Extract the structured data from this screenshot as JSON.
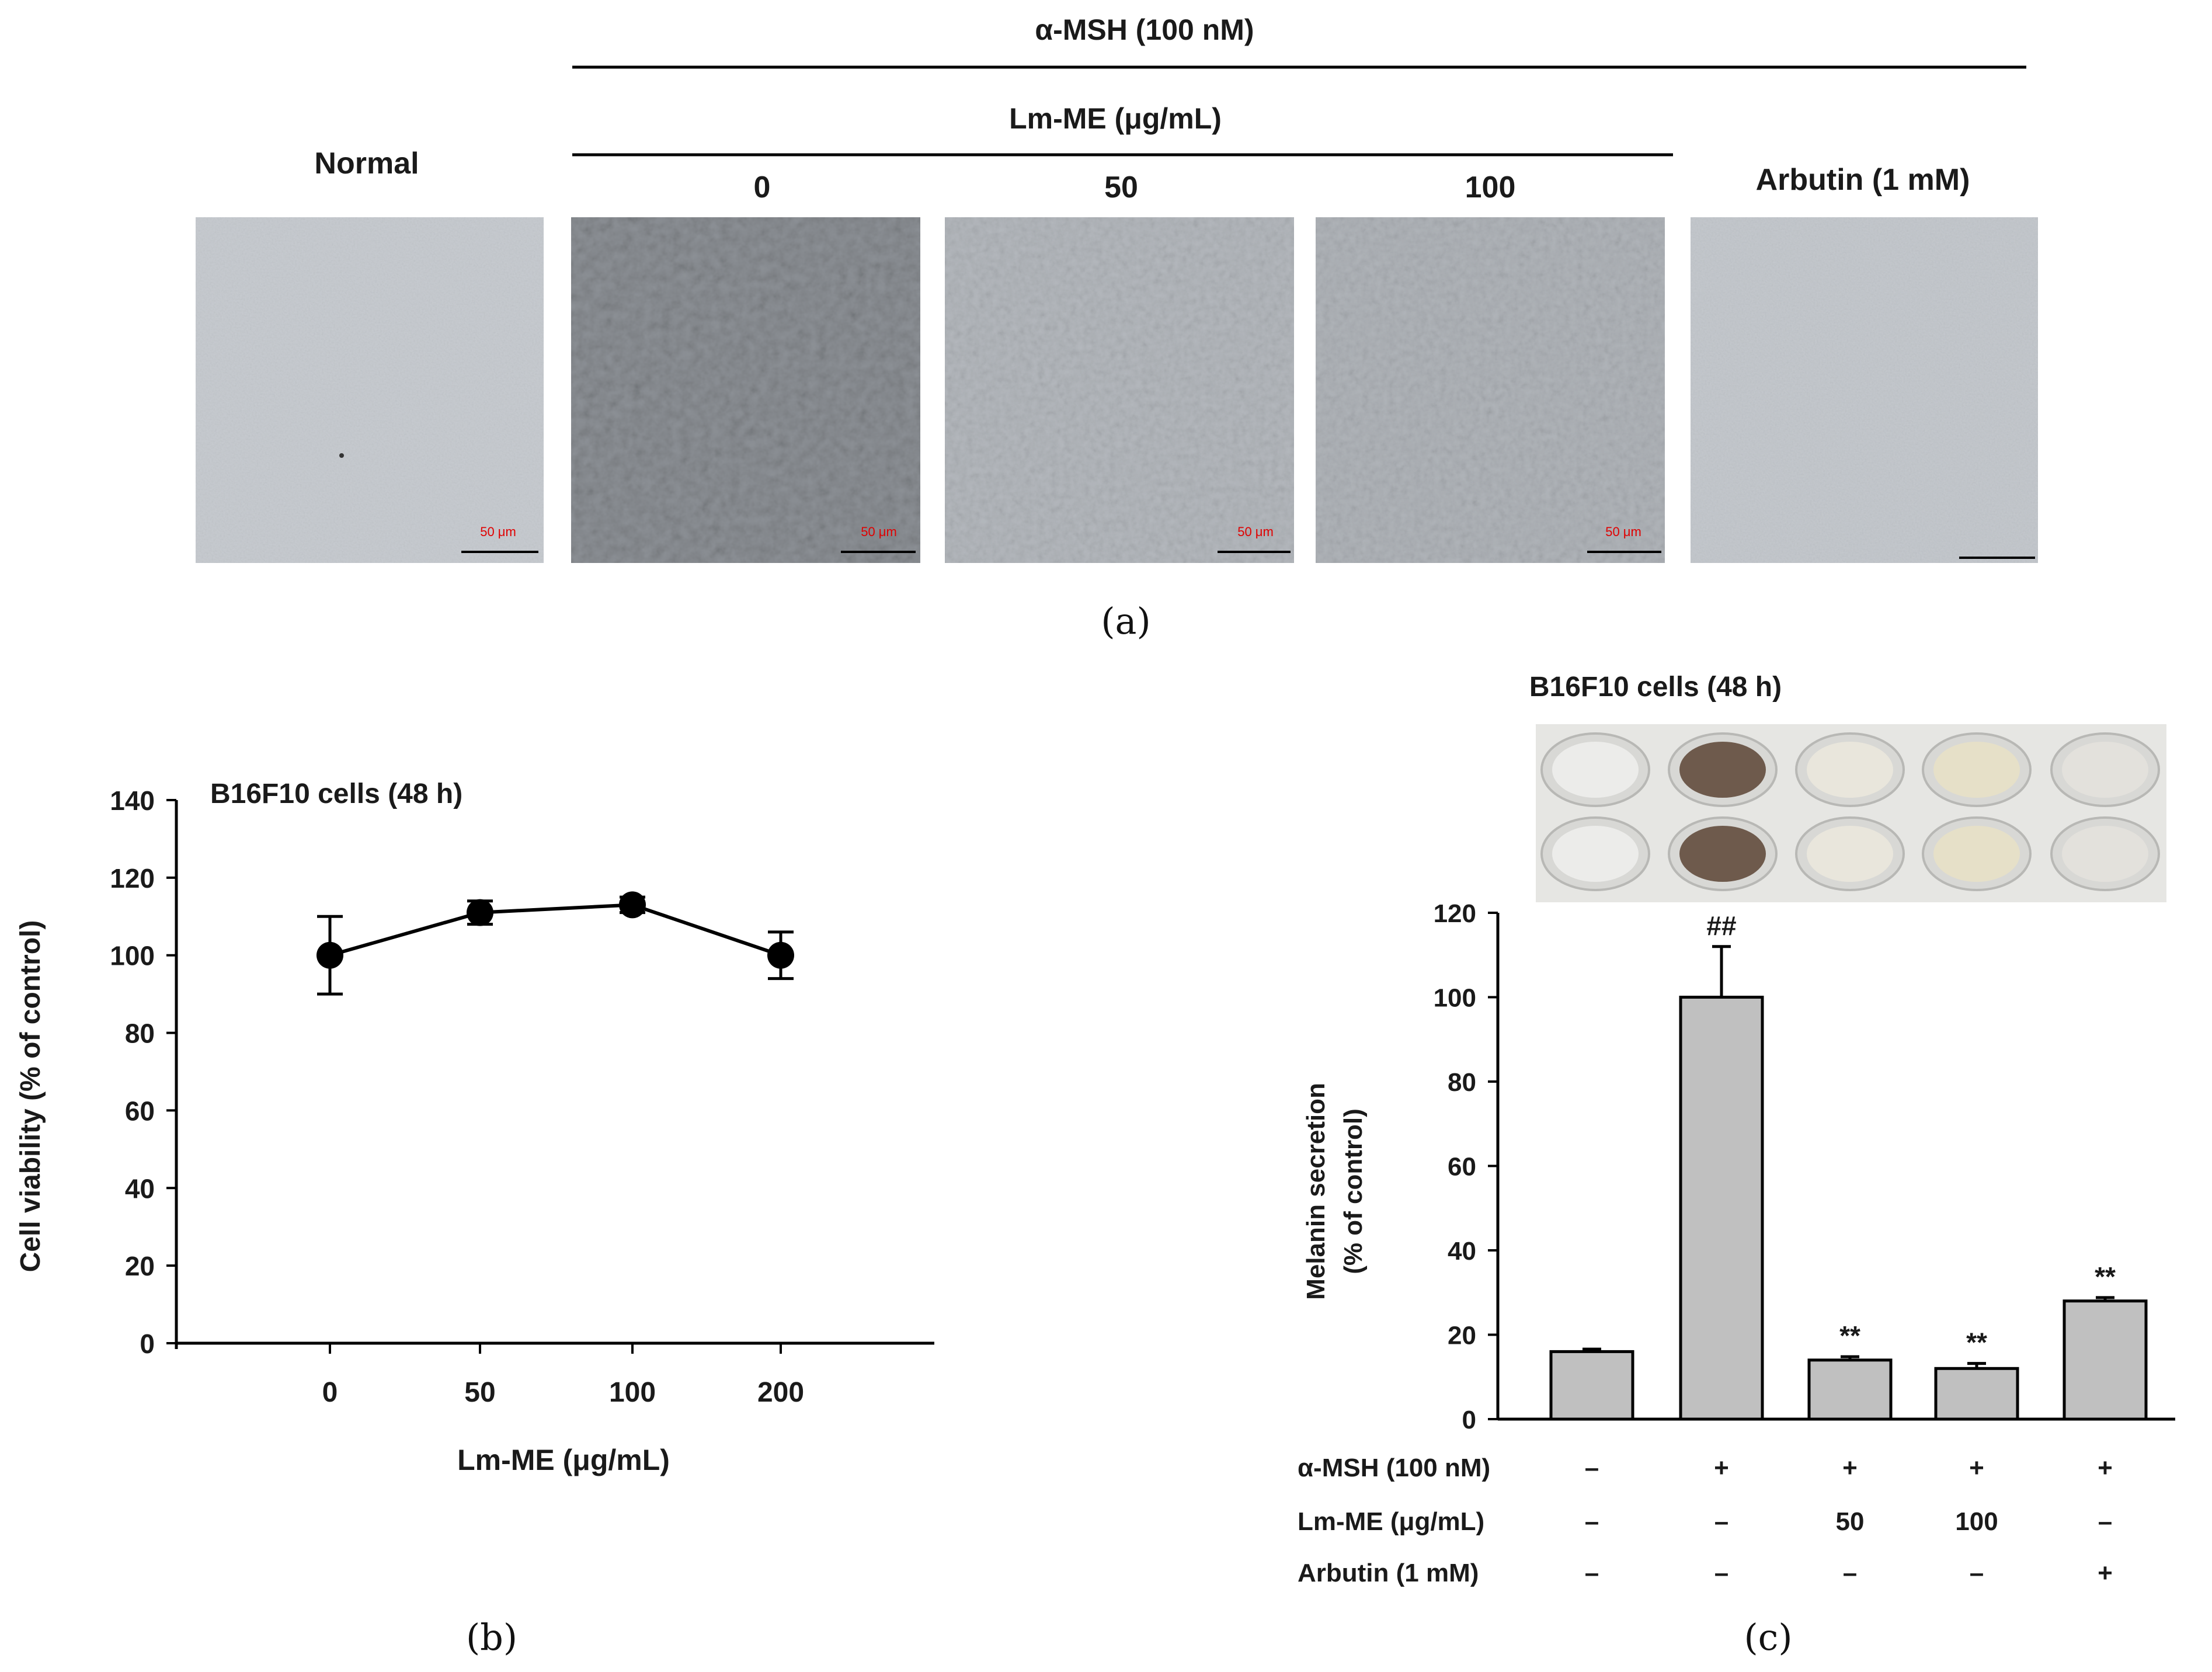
{
  "panel_a": {
    "header_top": "α-MSH (100 nM)",
    "header_lm": "Lm-ME (μg/mL)",
    "normal_label": "Normal",
    "arbutin_label": "Arbutin (1 mM)",
    "dose_labels": [
      "0",
      "50",
      "100"
    ],
    "scale_bar_text": "50 μm",
    "panel_label": "(a)"
  },
  "panel_b": {
    "panel_label": "(b)",
    "chart_data": {
      "type": "line",
      "title": "B16F10 cells (48 h)",
      "xlabel": "Lm-ME (μg/mL)",
      "ylabel": "Cell viability (% of control)",
      "categories": [
        "0",
        "50",
        "100",
        "200"
      ],
      "values": [
        100,
        111,
        113,
        100
      ],
      "errors": [
        10,
        3,
        2,
        6
      ],
      "ylim": [
        0,
        140
      ],
      "yticks": [
        "0",
        "20",
        "40",
        "60",
        "80",
        "100",
        "120",
        "140"
      ],
      "grid": false
    }
  },
  "panel_c": {
    "panel_label": "(c)",
    "title": "B16F10 cells (48 h)",
    "chart_data": {
      "type": "bar",
      "ylabel_line1": "Melanin secretion",
      "ylabel_line2": "(% of control)",
      "values": [
        16,
        100,
        14,
        12,
        28
      ],
      "errors": [
        0.6,
        12,
        0.8,
        1.2,
        0.8
      ],
      "annotations": [
        "",
        "##",
        "**",
        "**",
        "**"
      ],
      "ylim": [
        0,
        120
      ],
      "yticks": [
        "0",
        "20",
        "40",
        "60",
        "80",
        "100",
        "120"
      ],
      "grid": false,
      "bar_color": "#c0c0c0",
      "conditions": [
        {
          "label": "α-MSH (100 nM)",
          "values": [
            "–",
            "+",
            "+",
            "+",
            "+"
          ]
        },
        {
          "label": "Lm-ME (μg/mL)",
          "values": [
            "–",
            "–",
            "50",
            "100",
            "–"
          ]
        },
        {
          "label": "Arbutin (1 mM)",
          "values": [
            "–",
            "–",
            "–",
            "–",
            "+"
          ]
        }
      ]
    }
  }
}
